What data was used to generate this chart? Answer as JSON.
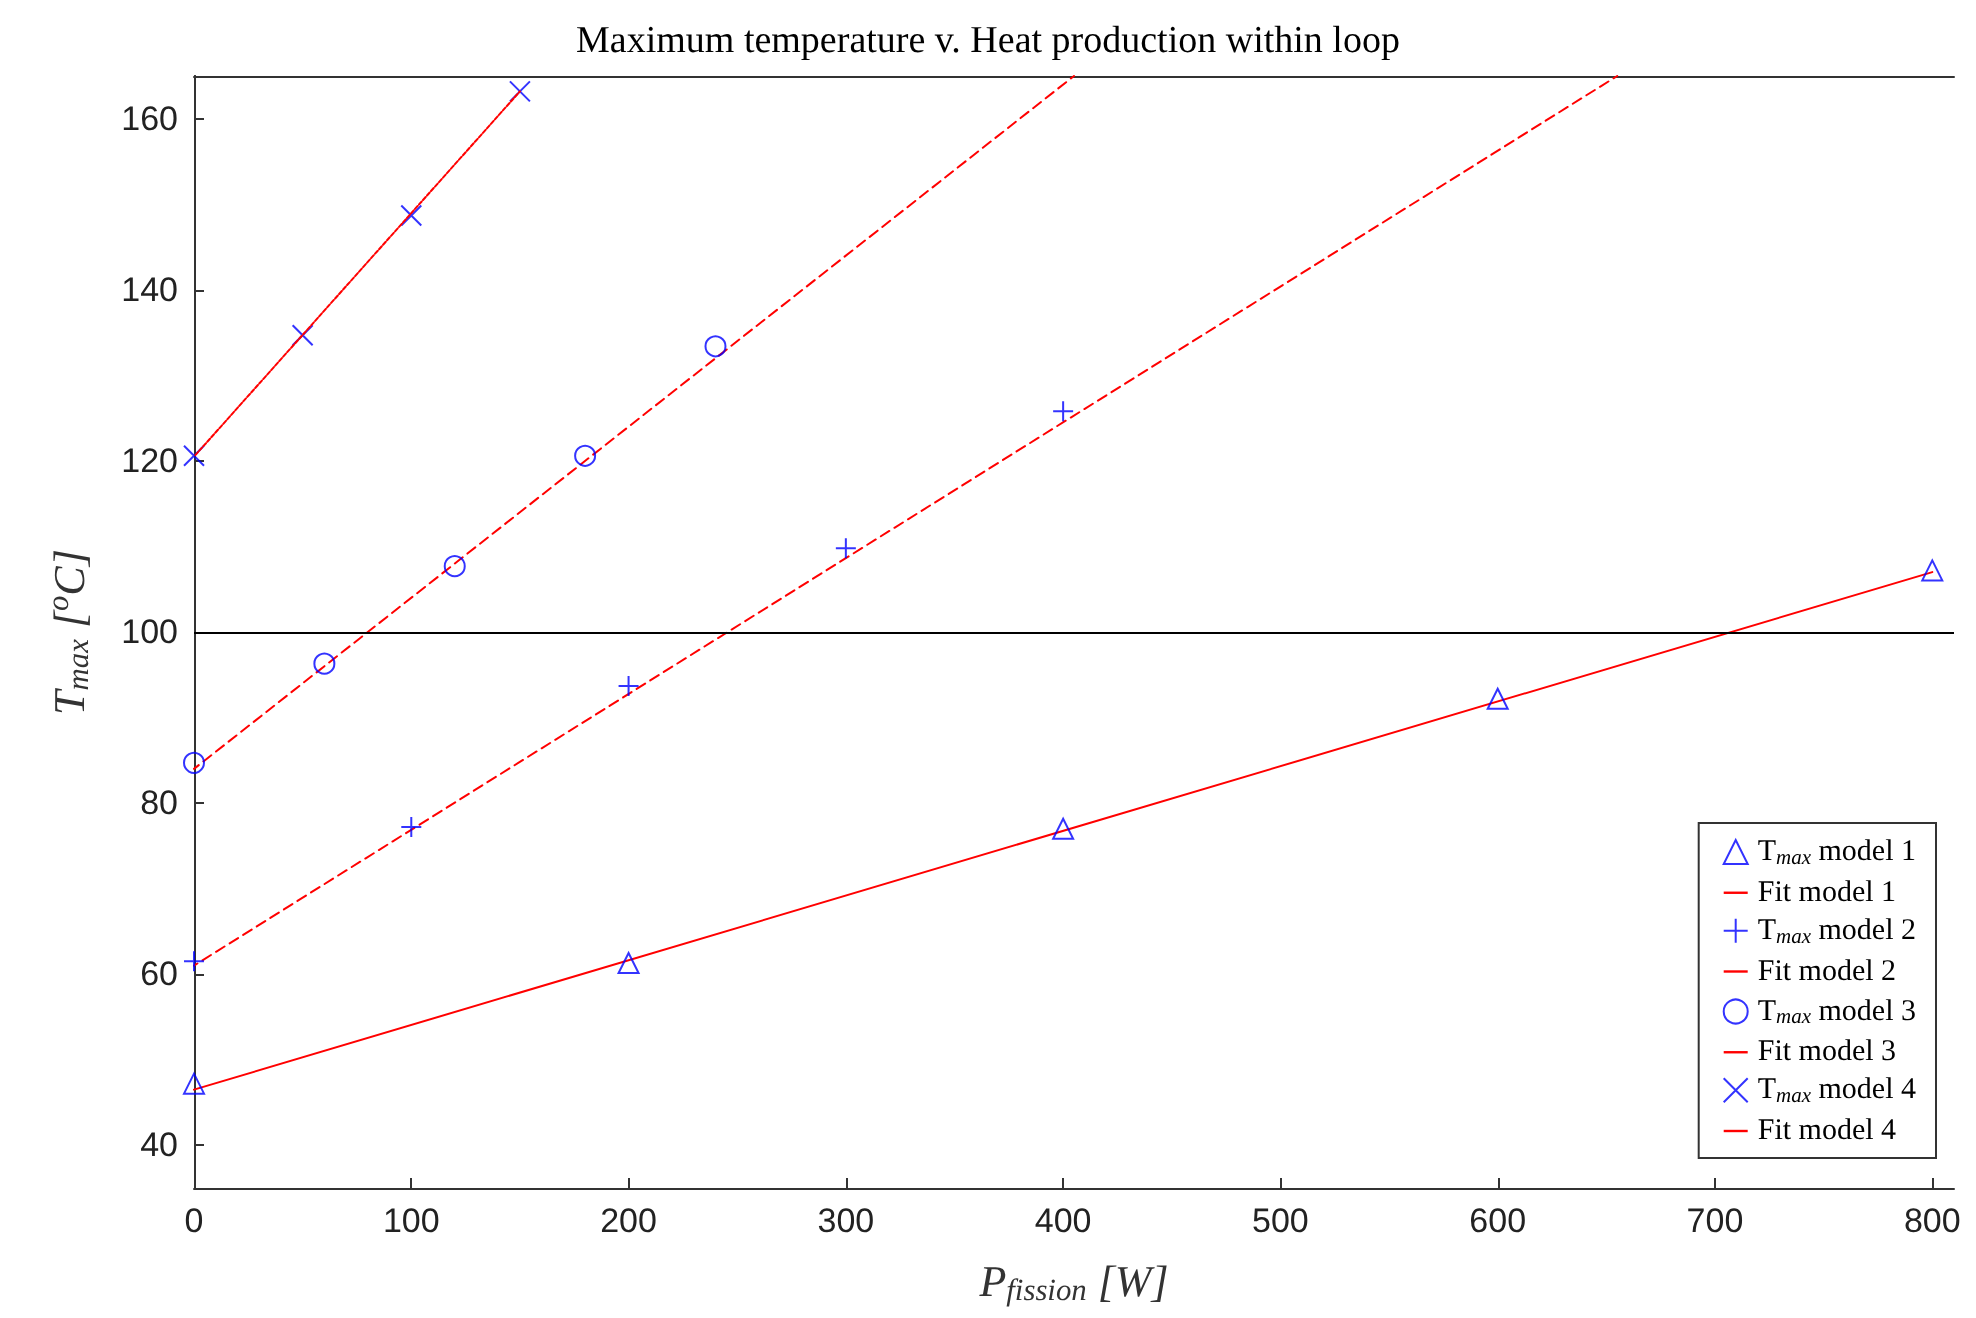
{
  "chart_data": {
    "type": "scatter",
    "title": "Maximum temperature v. Heat production within loop",
    "xlabel": "P$_{fission}$ [W]",
    "ylabel": "T$_{max}$ [$^{o}$C]",
    "xlim": [
      0,
      810
    ],
    "xticks": [
      0,
      100,
      200,
      300,
      400,
      500,
      600,
      700,
      800
    ],
    "ylim": [
      35,
      165
    ],
    "yticks": [
      40,
      60,
      80,
      100,
      120,
      140,
      160
    ],
    "grid": false,
    "legend": "bottom right",
    "ref_lines": [
      {
        "axis": "y",
        "value": 100,
        "color": "#000000"
      }
    ],
    "series": [
      {
        "name": "T$_{max}$ model 1",
        "marker": "triangle",
        "color": "#0000ff",
        "x": [
          0,
          200,
          400,
          600,
          800
        ],
        "values": [
          47.2,
          61.3,
          77,
          92.2,
          107.2
        ]
      },
      {
        "name": "Fit model 1",
        "type": "line",
        "marker": "none",
        "line_style": "solid",
        "color": "#ff0000",
        "x": [
          0,
          800
        ],
        "values": [
          46.5,
          107
        ]
      },
      {
        "name": "T$_{max}$ model 2",
        "marker": "plus",
        "color": "#0000ff",
        "x": [
          0,
          100,
          200,
          300,
          400
        ],
        "values": [
          61.5,
          77.2,
          93.7,
          109.8,
          125.8
        ]
      },
      {
        "name": "Fit model 2",
        "type": "line",
        "marker": "none",
        "line_style": "dashed",
        "color": "#ff0000",
        "x": [
          0,
          655
        ],
        "values": [
          61,
          165
        ]
      },
      {
        "name": "T$_{max}$ model 3",
        "marker": "circle",
        "color": "#0000ff",
        "x": [
          0,
          60,
          120,
          180,
          240
        ],
        "values": [
          84.7,
          96.3,
          107.7,
          120.6,
          133.4
        ]
      },
      {
        "name": "Fit model 3",
        "type": "line",
        "marker": "none",
        "line_style": "dashed",
        "color": "#ff0000",
        "x": [
          0,
          405
        ],
        "values": [
          84,
          165
        ]
      },
      {
        "name": "T$_{max}$ model 4",
        "marker": "x",
        "color": "#0000ff",
        "x": [
          0,
          50,
          100,
          150
        ],
        "values": [
          120.6,
          134.7,
          148.7,
          163.2
        ]
      },
      {
        "name": "Fit model 4",
        "type": "line",
        "marker": "none",
        "line_style": "dotted",
        "color": "#ff0000",
        "x": [
          0,
          150
        ],
        "values": [
          120.5,
          163.2
        ]
      }
    ]
  }
}
